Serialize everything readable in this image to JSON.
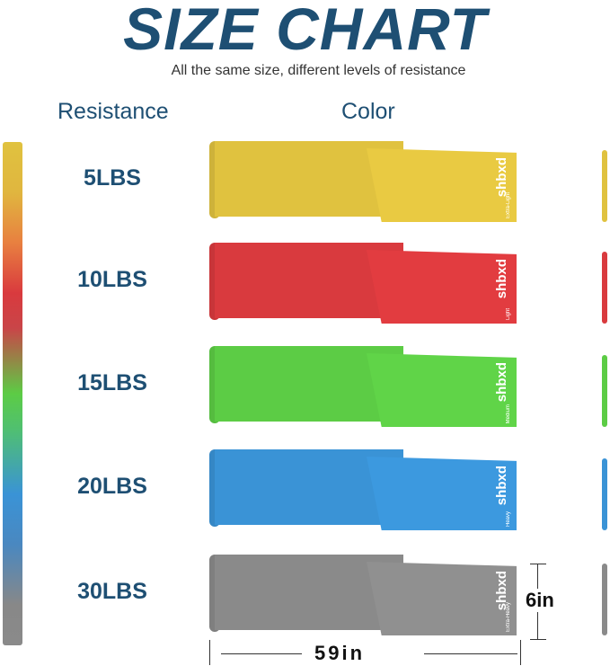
{
  "title": "SIZE CHART",
  "subtitle": "All the same size, different levels of resistance",
  "headers": {
    "resistance": "Resistance",
    "color": "Color"
  },
  "brand": "shbxd",
  "bands": [
    {
      "resistance": "5LBS",
      "level": "Extra-Light",
      "color": "#e0c23f"
    },
    {
      "resistance": "10LBS",
      "level": "Light",
      "color": "#d93a3e"
    },
    {
      "resistance": "15LBS",
      "level": "Medium",
      "color": "#5ccc45"
    },
    {
      "resistance": "20LBS",
      "level": "Heavy",
      "color": "#3a93d6"
    },
    {
      "resistance": "30LBS",
      "level": "Extra-Heavy",
      "color": "#8a8a8a"
    }
  ],
  "dimensions": {
    "width": "6in",
    "length": "59in"
  }
}
